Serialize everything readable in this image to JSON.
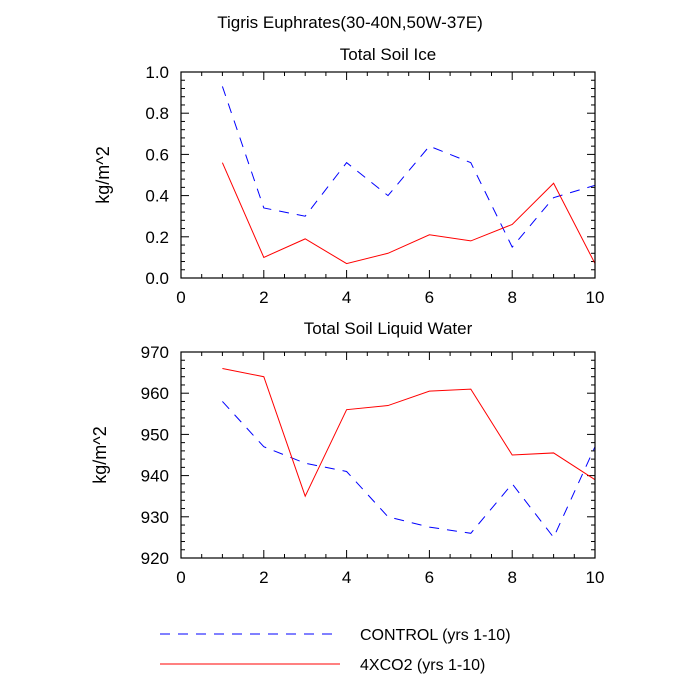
{
  "figure_title": "Tigris Euphrates(30-40N,50W-37E)",
  "colors": {
    "control": "#0000ff",
    "co2": "#ff0000",
    "axis": "#000000"
  },
  "legend": {
    "control_label": "CONTROL (yrs 1-10)",
    "co2_label": "4XCO2 (yrs 1-10)"
  },
  "chart_data": [
    {
      "type": "line",
      "title": "Total Soil Ice",
      "xlabel": "",
      "ylabel": "kg/m^2",
      "xlim": [
        0,
        10
      ],
      "ylim": [
        0,
        1
      ],
      "xticks": [
        0,
        2,
        4,
        6,
        8,
        10
      ],
      "xtick_labels": [
        "0",
        "2",
        "4",
        "6",
        "8",
        "10"
      ],
      "yticks": [
        0,
        0.2,
        0.4,
        0.6,
        0.8,
        1.0
      ],
      "ytick_labels": [
        "0.0",
        "0.2",
        "0.4",
        "0.6",
        "0.8",
        "1.0"
      ],
      "x": [
        1,
        2,
        3,
        4,
        5,
        6,
        7,
        8,
        9,
        10
      ],
      "series": [
        {
          "name": "CONTROL (yrs 1-10)",
          "style": "dashed",
          "color": "#0000ff",
          "values": [
            0.93,
            0.34,
            0.3,
            0.56,
            0.4,
            0.64,
            0.56,
            0.15,
            0.39,
            0.45
          ]
        },
        {
          "name": "4XCO2 (yrs 1-10)",
          "style": "solid",
          "color": "#ff0000",
          "values": [
            0.56,
            0.1,
            0.19,
            0.07,
            0.12,
            0.21,
            0.18,
            0.26,
            0.46,
            0.07
          ]
        }
      ]
    },
    {
      "type": "line",
      "title": "Total Soil Liquid Water",
      "xlabel": "",
      "ylabel": "kg/m^2",
      "xlim": [
        0,
        10
      ],
      "ylim": [
        920,
        970
      ],
      "xticks": [
        0,
        2,
        4,
        6,
        8,
        10
      ],
      "xtick_labels": [
        "0",
        "2",
        "4",
        "6",
        "8",
        "10"
      ],
      "yticks": [
        920,
        930,
        940,
        950,
        960,
        970
      ],
      "ytick_labels": [
        "920",
        "930",
        "940",
        "950",
        "960",
        "970"
      ],
      "x": [
        1,
        2,
        3,
        4,
        5,
        6,
        7,
        8,
        9,
        10
      ],
      "series": [
        {
          "name": "CONTROL (yrs 1-10)",
          "style": "dashed",
          "color": "#0000ff",
          "values": [
            958,
            947,
            943,
            941,
            930,
            927.5,
            926,
            938,
            925,
            947
          ]
        },
        {
          "name": "4XCO2 (yrs 1-10)",
          "style": "solid",
          "color": "#ff0000",
          "values": [
            966,
            964,
            935,
            956,
            957,
            960.5,
            961,
            945,
            945.5,
            939
          ]
        }
      ]
    }
  ]
}
